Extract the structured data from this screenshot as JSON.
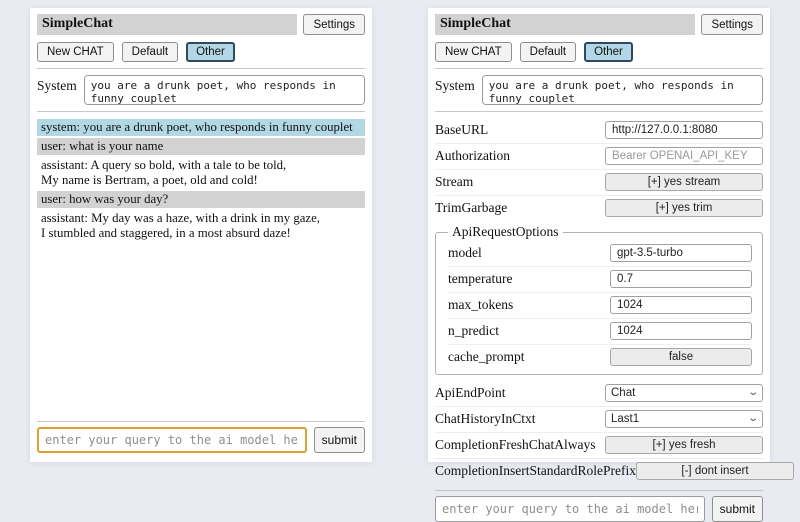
{
  "colors": {
    "page_bg": "#e8ebf1",
    "titlebar_bg": "#d2d2d2",
    "selected_chat_bg": "#b3d7e6",
    "selected_chat_border": "#2e4a5e",
    "system_msg_bg": "#b3d8e5",
    "user_msg_bg": "#d2d2d2",
    "focused_input_border": "#d9a13c"
  },
  "left": {
    "title": "SimpleChat",
    "settings_label": "Settings",
    "chat_buttons": [
      "New CHAT",
      "Default",
      "Other"
    ],
    "system_label": "System",
    "system_prompt": "you are a drunk poet, who responds in funny couplet",
    "messages": [
      {
        "role": "system",
        "text": "system: you are a drunk poet, who responds in funny couplet"
      },
      {
        "role": "user",
        "text": "user: what is your name"
      },
      {
        "role": "assistant",
        "text": "assistant: A query so bold, with a tale to be told,\nMy name is Bertram, a poet, old and cold!"
      },
      {
        "role": "user",
        "text": "user: how was your day?"
      },
      {
        "role": "assistant",
        "text": "assistant: My day was a haze, with a drink in my gaze,\nI stumbled and staggered, in a most absurd daze!"
      }
    ],
    "query_placeholder": "enter your query to the ai model here",
    "submit_label": "submit"
  },
  "right": {
    "title": "SimpleChat",
    "settings_label": "Settings",
    "chat_buttons": [
      "New CHAT",
      "Default",
      "Other"
    ],
    "system_label": "System",
    "system_prompt": "you are a drunk poet, who responds in funny couplet",
    "settings": {
      "baseurl": {
        "label": "BaseURL",
        "value": "http://127.0.0.1:8080"
      },
      "authorization": {
        "label": "Authorization",
        "placeholder": "Bearer OPENAI_API_KEY"
      },
      "stream": {
        "label": "Stream",
        "value": "[+] yes stream"
      },
      "trimgarbage": {
        "label": "TrimGarbage",
        "value": "[+] yes trim"
      },
      "api_request_options": {
        "legend": "ApiRequestOptions",
        "model": {
          "label": "model",
          "value": "gpt-3.5-turbo"
        },
        "temperature": {
          "label": "temperature",
          "value": "0.7"
        },
        "max_tokens": {
          "label": "max_tokens",
          "value": "1024"
        },
        "n_predict": {
          "label": "n_predict",
          "value": "1024"
        },
        "cache_prompt": {
          "label": "cache_prompt",
          "value": "false"
        }
      },
      "api_endpoint": {
        "label": "ApiEndPoint",
        "value": "Chat"
      },
      "chat_history_in_ctxt": {
        "label": "ChatHistoryInCtxt",
        "value": "Last1"
      },
      "completion_fresh_chat_always": {
        "label": "CompletionFreshChatAlways",
        "value": "[+] yes fresh"
      },
      "completion_insert_standard_role_prefix": {
        "label": "CompletionInsertStandardRolePrefix",
        "value": "[-] dont insert"
      }
    },
    "query_placeholder": "enter your query to the ai model here",
    "submit_label": "submit"
  }
}
